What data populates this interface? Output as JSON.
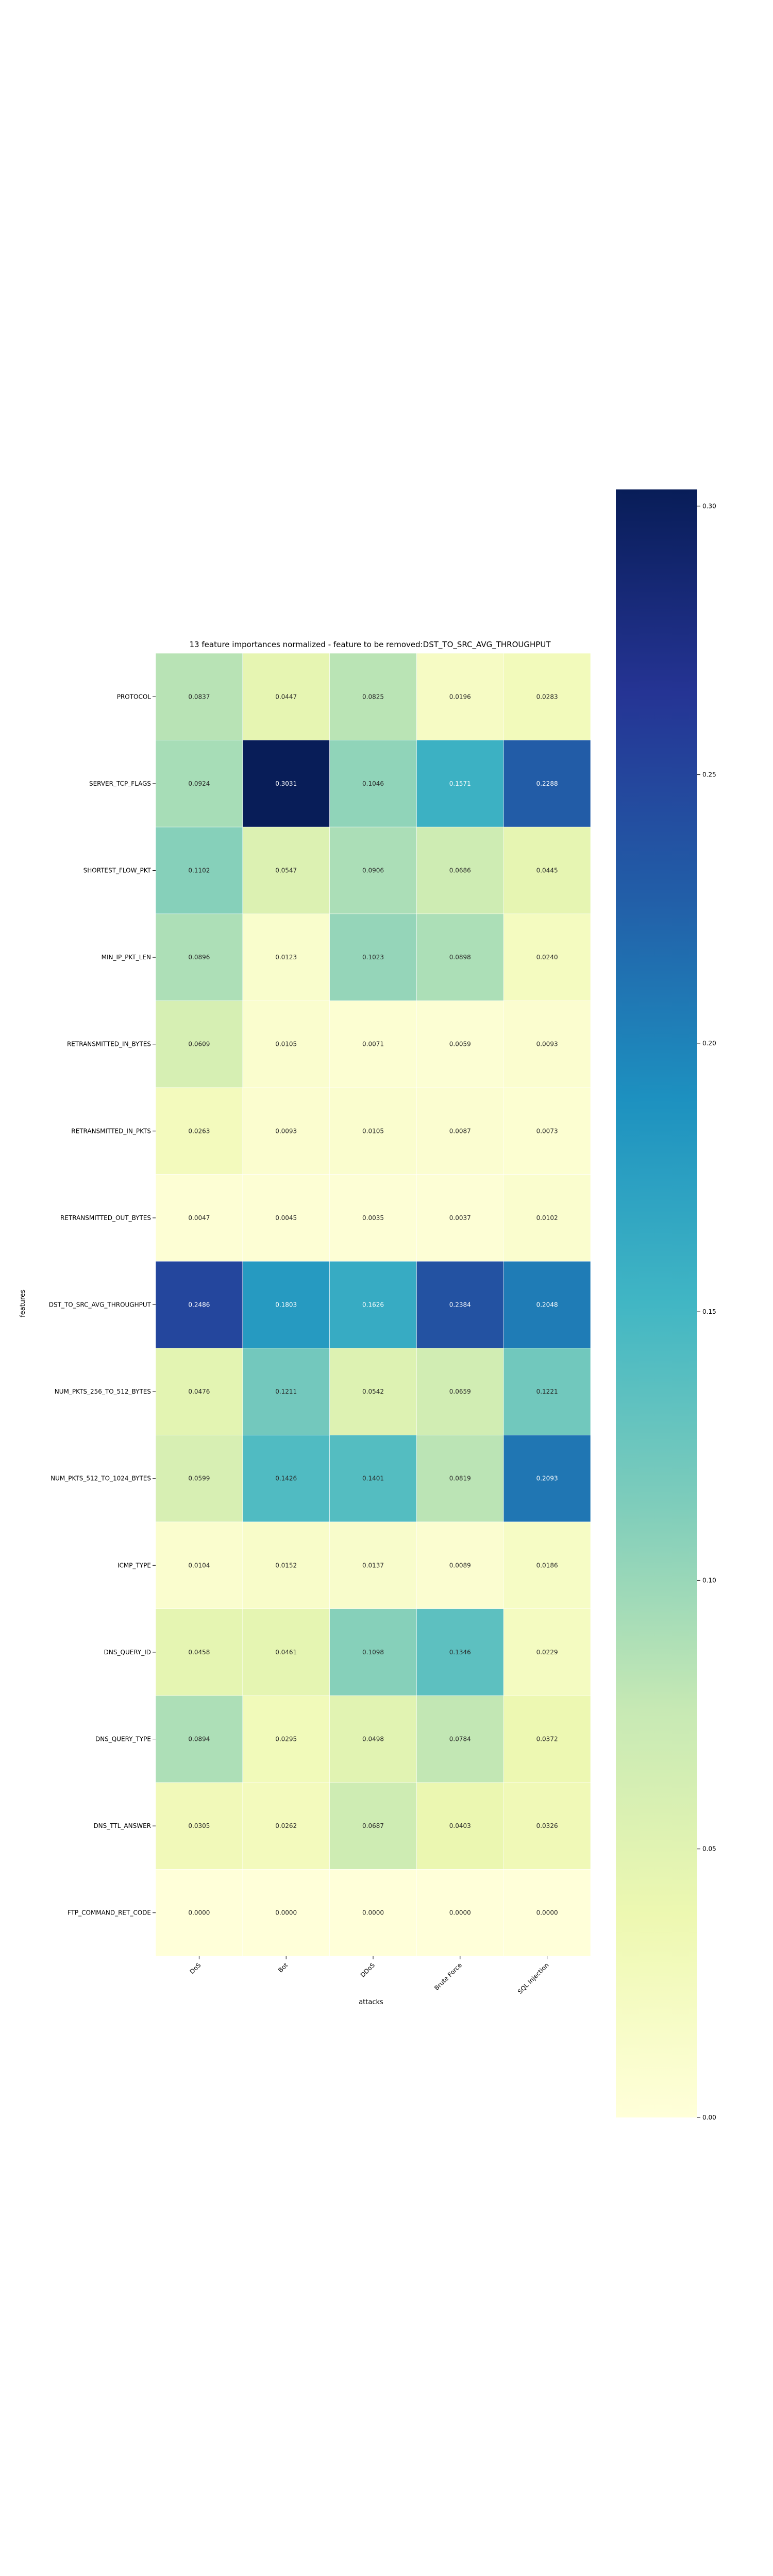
{
  "chart_data": {
    "type": "heatmap",
    "title": "13 feature importances normalized - feature to be removed:DST_TO_SRC_AVG_THROUGHPUT",
    "xlabel": "attacks",
    "ylabel": "features",
    "x_categories": [
      "DoS",
      "Bot",
      "DDoS",
      "Brute Force",
      "SQL Injection"
    ],
    "y_categories": [
      "PROTOCOL",
      "SERVER_TCP_FLAGS",
      "SHORTEST_FLOW_PKT",
      "MIN_IP_PKT_LEN",
      "RETRANSMITTED_IN_BYTES",
      "RETRANSMITTED_IN_PKTS",
      "RETRANSMITTED_OUT_BYTES",
      "DST_TO_SRC_AVG_THROUGHPUT",
      "NUM_PKTS_256_TO_512_BYTES",
      "NUM_PKTS_512_TO_1024_BYTES",
      "ICMP_TYPE",
      "DNS_QUERY_ID",
      "DNS_QUERY_TYPE",
      "DNS_TTL_ANSWER",
      "FTP_COMMAND_RET_CODE"
    ],
    "values": [
      [
        "0.0837",
        "0.0447",
        "0.0825",
        "0.0196",
        "0.0283"
      ],
      [
        "0.0924",
        "0.3031",
        "0.1046",
        "0.1571",
        "0.2288"
      ],
      [
        "0.1102",
        "0.0547",
        "0.0906",
        "0.0686",
        "0.0445"
      ],
      [
        "0.0896",
        "0.0123",
        "0.1023",
        "0.0898",
        "0.0240"
      ],
      [
        "0.0609",
        "0.0105",
        "0.0071",
        "0.0059",
        "0.0093"
      ],
      [
        "0.0263",
        "0.0093",
        "0.0105",
        "0.0087",
        "0.0073"
      ],
      [
        "0.0047",
        "0.0045",
        "0.0035",
        "0.0037",
        "0.0102"
      ],
      [
        "0.2486",
        "0.1803",
        "0.1626",
        "0.2384",
        "0.2048"
      ],
      [
        "0.0476",
        "0.1211",
        "0.0542",
        "0.0659",
        "0.1221"
      ],
      [
        "0.0599",
        "0.1426",
        "0.1401",
        "0.0819",
        "0.2093"
      ],
      [
        "0.0104",
        "0.0152",
        "0.0137",
        "0.0089",
        "0.0186"
      ],
      [
        "0.0458",
        "0.0461",
        "0.1098",
        "0.1346",
        "0.0229"
      ],
      [
        "0.0894",
        "0.0295",
        "0.0498",
        "0.0784",
        "0.0372"
      ],
      [
        "0.0305",
        "0.0262",
        "0.0687",
        "0.0403",
        "0.0326"
      ],
      [
        "0.0000",
        "0.0000",
        "0.0000",
        "0.0000",
        "0.0000"
      ]
    ],
    "colorbar": {
      "colormap": "YlGnBu",
      "range": [
        0,
        0.3031
      ],
      "ticks": [
        "0.00",
        "0.05",
        "0.10",
        "0.15",
        "0.20",
        "0.25",
        "0.30"
      ]
    },
    "colormap_stops": [
      "#ffffd9",
      "#edf8b1",
      "#c7e9b4",
      "#7fcdbb",
      "#41b6c4",
      "#1d91c0",
      "#225ea8",
      "#253494",
      "#081d58"
    ]
  }
}
